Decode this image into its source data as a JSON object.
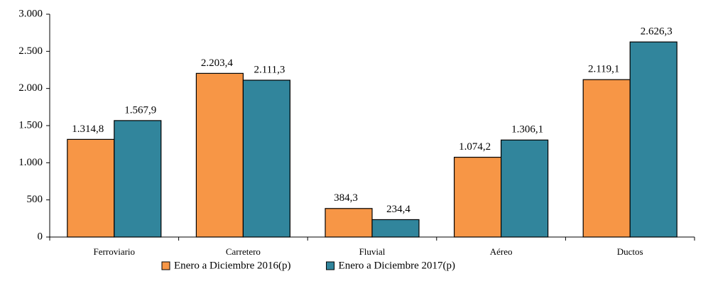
{
  "chart_data": {
    "type": "bar",
    "categories": [
      "Ferroviario",
      "Carretero",
      "Fluvial",
      "Aéreo",
      "Ductos"
    ],
    "series": [
      {
        "name": "Enero a Diciembre 2016(p)",
        "color": "#f79646",
        "values": [
          1314.8,
          2203.4,
          384.3,
          1074.2,
          2119.1
        ],
        "value_labels": [
          "1.314,8",
          "2.203,4",
          "384,3",
          "1.074,2",
          "2.119,1"
        ]
      },
      {
        "name": "Enero a Diciembre 2017(p)",
        "color": "#31859c",
        "values": [
          1567.9,
          2111.3,
          234.4,
          1306.1,
          2626.3
        ],
        "value_labels": [
          "1.567,9",
          "2.111,3",
          "234,4",
          "1.306,1",
          "2.626,3"
        ]
      }
    ],
    "ylim": [
      0,
      3000
    ],
    "yticks": [
      0,
      500,
      {
        "value": 1000,
        "label": "1.000"
      },
      {
        "value": 1500,
        "label": "1.500"
      },
      {
        "value": 2000,
        "label": "2.000"
      },
      {
        "value": 2500,
        "label": "2.500"
      },
      {
        "value": 3000,
        "label": "3.000"
      }
    ],
    "legend": "bottom"
  }
}
